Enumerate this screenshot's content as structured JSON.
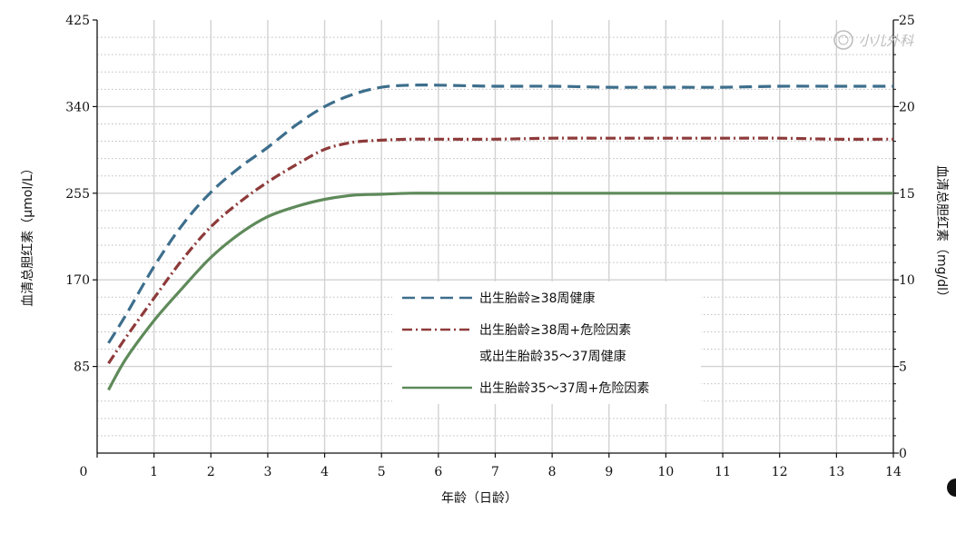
{
  "watermark": {
    "text": "小儿外科"
  },
  "chart_data": {
    "type": "line",
    "xlabel": "年龄（日龄）",
    "ylabel": "血清总胆红素（μmol/L）",
    "y2label": "血清总胆红素（mg/dl）",
    "xlim": [
      0,
      14
    ],
    "ylim": [
      0,
      425
    ],
    "y2lim": [
      0,
      25
    ],
    "xticks": [
      "0",
      "1",
      "2",
      "3",
      "4",
      "5",
      "6",
      "7",
      "8",
      "9",
      "10",
      "11",
      "12",
      "13",
      "14"
    ],
    "yticks": [
      "85",
      "170",
      "255",
      "340",
      "425"
    ],
    "y2ticks": [
      "0",
      "5",
      "10",
      "15",
      "20",
      "25"
    ],
    "grid": true,
    "legend_position": "center",
    "series": [
      {
        "name": "出生胎龄≥38周健康",
        "color": "#3d6e8c",
        "style": "dashed",
        "x": [
          0.2,
          0.5,
          1,
          1.5,
          2,
          2.5,
          3,
          3.5,
          4,
          4.5,
          5,
          5.5,
          6,
          7,
          8,
          9,
          10,
          11,
          12,
          13,
          14
        ],
        "y": [
          108,
          135,
          183,
          224,
          256,
          280,
          300,
          322,
          340,
          352,
          359,
          361,
          361,
          360,
          360,
          359,
          359,
          359,
          360,
          360,
          360
        ]
      },
      {
        "name": "出生胎龄≥38周+危险因素",
        "name_line2": "或出生胎龄35～37周健康",
        "color": "#8e3a3a",
        "style": "dashdot",
        "x": [
          0.2,
          0.5,
          1,
          1.5,
          2,
          2.5,
          3,
          3.5,
          4,
          4.5,
          5,
          5.5,
          6,
          7,
          8,
          9,
          10,
          11,
          12,
          13,
          14
        ],
        "y": [
          88,
          113,
          152,
          190,
          222,
          246,
          266,
          283,
          298,
          305,
          307,
          308,
          308,
          308,
          309,
          309,
          309,
          309,
          309,
          308,
          308
        ]
      },
      {
        "name": "出生胎龄35～37周+危险因素",
        "color": "#5f8a5a",
        "style": "solid",
        "x": [
          0.2,
          0.5,
          1,
          1.5,
          2,
          2.5,
          3,
          3.5,
          4,
          4.5,
          5,
          5.5,
          6,
          7,
          8,
          9,
          10,
          11,
          12,
          13,
          14
        ],
        "y": [
          62,
          92,
          130,
          162,
          192,
          215,
          232,
          242,
          249,
          253,
          254,
          255,
          255,
          255,
          255,
          255,
          255,
          255,
          255,
          255,
          255
        ]
      }
    ]
  }
}
